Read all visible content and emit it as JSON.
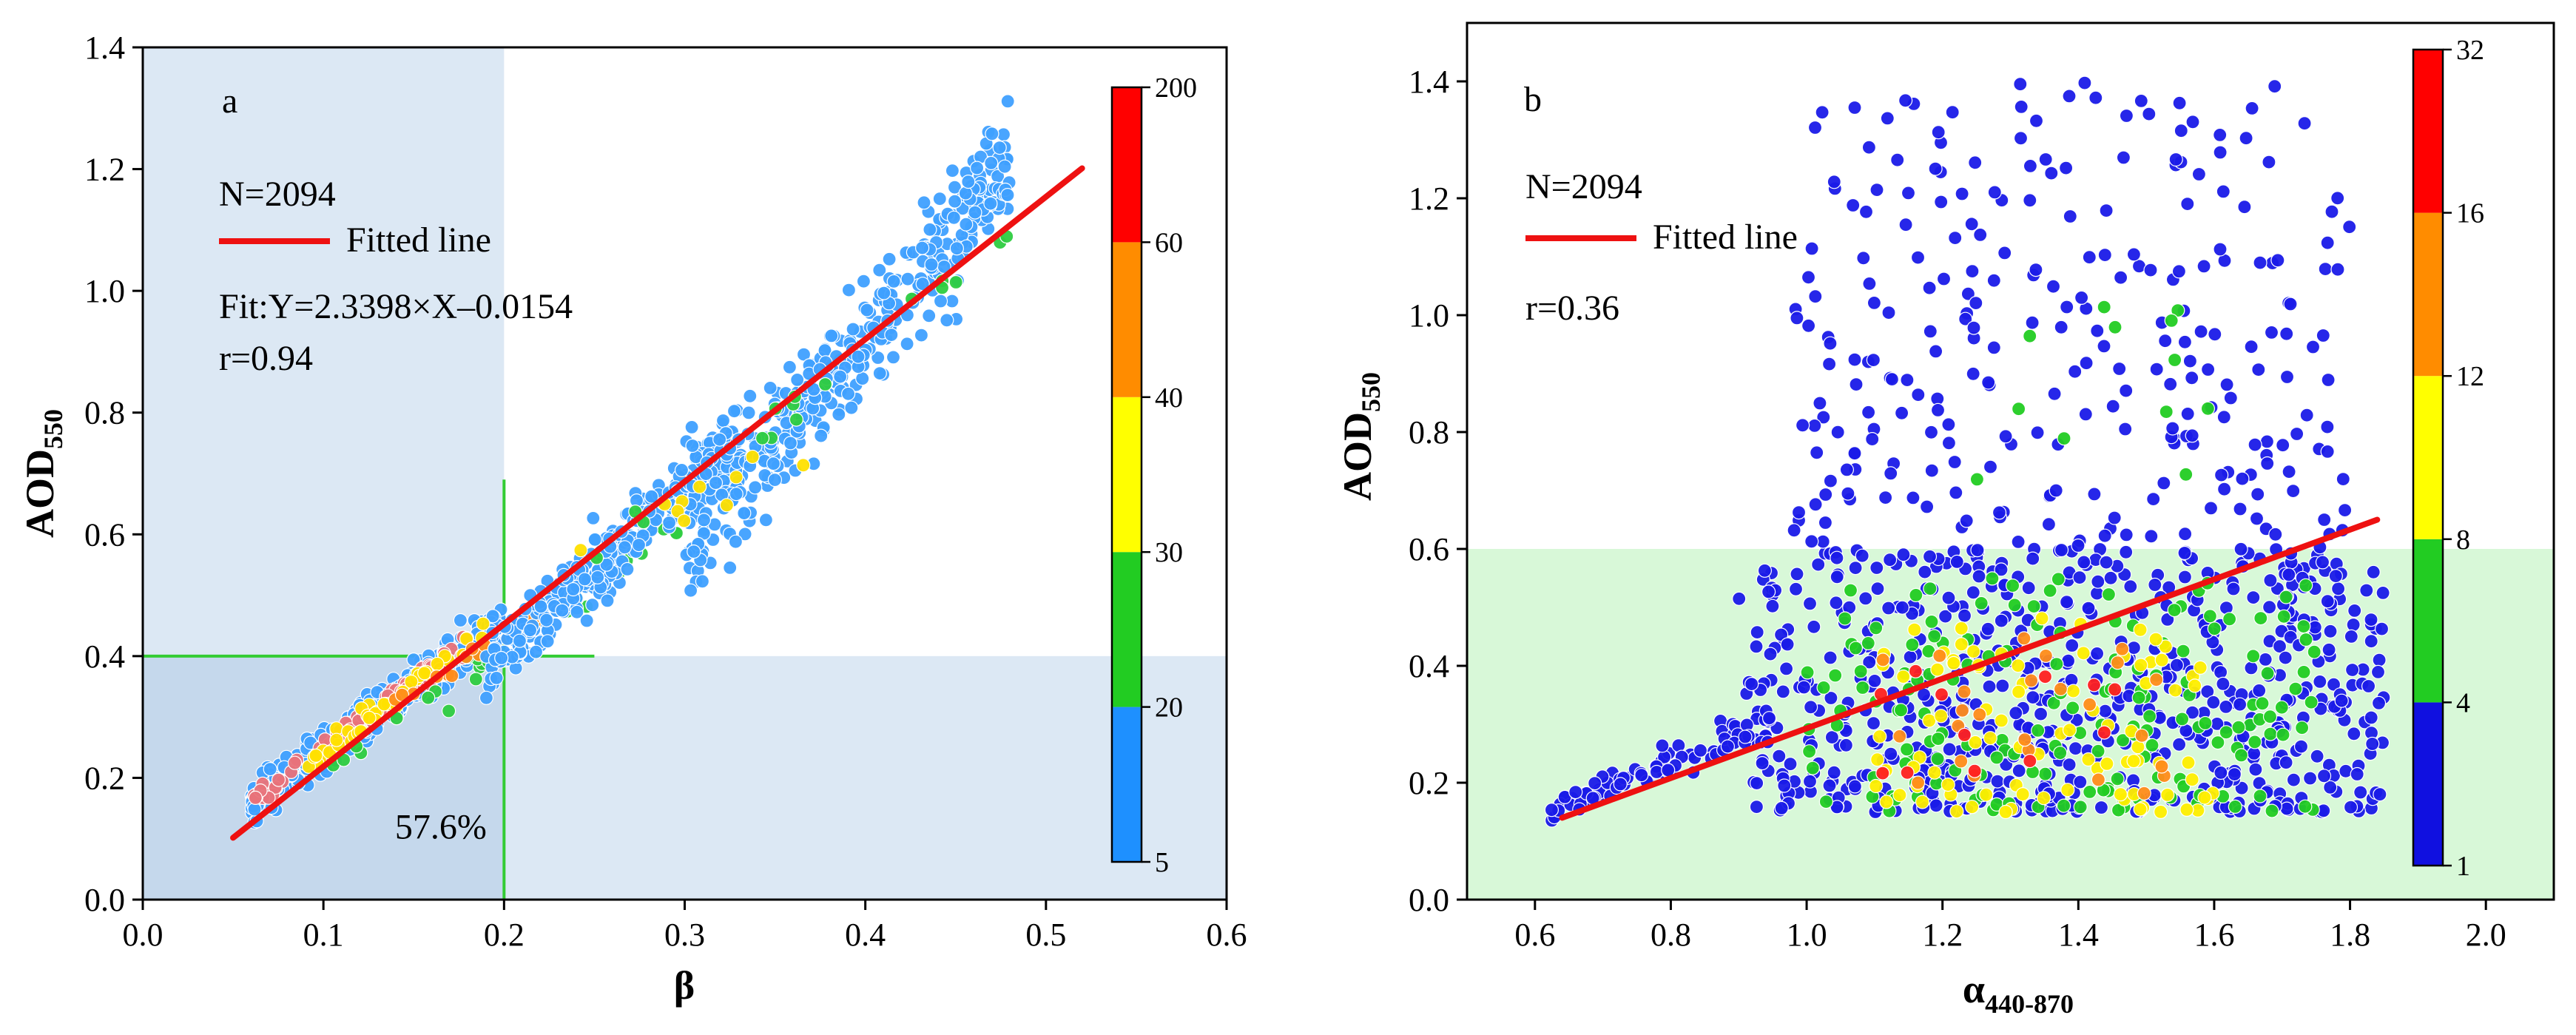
{
  "chart_data": [
    {
      "type": "scatter",
      "panel_label": "a",
      "xlabel": "β",
      "ylabel": "AOD",
      "ylabel_sub": "550",
      "xlim": [
        0.0,
        0.6
      ],
      "ylim": [
        0.0,
        1.4
      ],
      "xticks": [
        "0.0",
        "0.1",
        "0.2",
        "0.3",
        "0.4",
        "0.5",
        "0.6"
      ],
      "yticks": [
        "0.0",
        "0.2",
        "0.4",
        "0.6",
        "0.8",
        "1.0",
        "1.2",
        "1.4"
      ],
      "xtick_values": [
        0.0,
        0.1,
        0.2,
        0.3,
        0.4,
        0.5,
        0.6
      ],
      "ytick_values": [
        0.0,
        0.2,
        0.4,
        0.6,
        0.8,
        1.0,
        1.2,
        1.4
      ],
      "n_text": "N=2094",
      "legend_label": "Fitted line",
      "fit_text": "Fit:Y=2.3398×X–0.0154",
      "r_text": "r=0.94",
      "percent_text": "57.6%",
      "percent_pos": [
        0.165,
        0.1
      ],
      "fit": {
        "slope": 2.3398,
        "intercept": -0.0154,
        "x_range": [
          0.05,
          0.52
        ]
      },
      "shaded_regions": [
        {
          "x": [
            0.0,
            0.2
          ],
          "y": [
            0.4,
            1.4
          ],
          "color": "#dce8f4"
        },
        {
          "x": [
            0.2,
            0.6
          ],
          "y": [
            0.0,
            0.4
          ],
          "color": "#dce8f4"
        },
        {
          "x": [
            0.0,
            0.2
          ],
          "y": [
            0.0,
            0.4
          ],
          "color": "#c5d8ec"
        }
      ],
      "threshold_lines": [
        {
          "x": [
            0.2,
            0.2
          ],
          "y": [
            0.0,
            0.69
          ]
        },
        {
          "x": [
            0.0,
            0.25
          ],
          "y": [
            0.4,
            0.4
          ]
        }
      ],
      "colorbar": {
        "tick_labels": [
          "5",
          "20",
          "30",
          "40",
          "60",
          "200"
        ],
        "colors": [
          "#1e90ff",
          "#22cc22",
          "#ffff00",
          "#ff8c00",
          "#ff0000"
        ]
      },
      "clusters": [
        {
          "x": [
            0.06,
            0.2
          ],
          "y": [
            0.16,
            0.46
          ],
          "slope": 2.3,
          "spread": 0.035,
          "n": 420,
          "color": "#3fa0ff"
        },
        {
          "x": [
            0.06,
            0.18
          ],
          "y": [
            0.16,
            0.42
          ],
          "slope": 2.3,
          "spread": 0.02,
          "n": 90,
          "color": "#e8727a"
        },
        {
          "x": [
            0.09,
            0.19
          ],
          "y": [
            0.22,
            0.44
          ],
          "slope": 2.3,
          "spread": 0.02,
          "n": 45,
          "color": "#ffe000"
        },
        {
          "x": [
            0.1,
            0.3
          ],
          "y": [
            0.2,
            0.62
          ],
          "slope": 2.3,
          "spread": 0.03,
          "n": 30,
          "color": "#2ecc40"
        },
        {
          "x": [
            0.13,
            0.25
          ],
          "y": [
            0.3,
            0.52
          ],
          "slope": 2.3,
          "spread": 0.02,
          "n": 18,
          "color": "#ff8c1a"
        },
        {
          "x": [
            0.19,
            0.33
          ],
          "y": [
            0.38,
            0.76
          ],
          "slope": 2.2,
          "spread": 0.06,
          "n": 330,
          "color": "#3fa0ff"
        },
        {
          "x": [
            0.3,
            0.48
          ],
          "y": [
            0.58,
            1.2
          ],
          "slope": 2.2,
          "spread": 0.1,
          "n": 380,
          "color": "#3fa0ff"
        },
        {
          "x": [
            0.24,
            0.48
          ],
          "y": [
            0.55,
            1.08
          ],
          "slope": 2.2,
          "spread": 0.05,
          "n": 16,
          "color": "#2ecc40"
        },
        {
          "x": [
            0.24,
            0.4
          ],
          "y": [
            0.58,
            0.78
          ],
          "slope": 2.0,
          "spread": 0.04,
          "n": 10,
          "color": "#ffe000"
        }
      ]
    },
    {
      "type": "scatter",
      "panel_label": "b",
      "xlabel": "α",
      "xlabel_sub": "440-870",
      "ylabel": "AOD",
      "ylabel_sub": "550",
      "xlim": [
        0.5,
        2.1
      ],
      "ylim": [
        0.0,
        1.5
      ],
      "xticks": [
        "0.6",
        "0.8",
        "1.0",
        "1.2",
        "1.4",
        "1.6",
        "1.8",
        "2.0"
      ],
      "yticks": [
        "0.0",
        "0.2",
        "0.4",
        "0.6",
        "0.8",
        "1.0",
        "1.2",
        "1.4"
      ],
      "xtick_values": [
        0.6,
        0.8,
        1.0,
        1.2,
        1.4,
        1.6,
        1.8,
        2.0
      ],
      "ytick_values": [
        0.0,
        0.2,
        0.4,
        0.6,
        0.8,
        1.0,
        1.2,
        1.4
      ],
      "n_text": "N=2094",
      "legend_label": "Fitted line",
      "r_text": "r=0.36",
      "fit": {
        "x_range": [
          0.64,
          1.84
        ],
        "y_range": [
          0.14,
          0.65
        ]
      },
      "shaded_regions": [
        {
          "x": [
            0.5,
            2.1
          ],
          "y": [
            0.0,
            0.6
          ],
          "color": "#d8f8d8"
        }
      ],
      "colorbar": {
        "tick_labels": [
          "1",
          "4",
          "8",
          "12",
          "16",
          "32"
        ],
        "colors": [
          "#1010e0",
          "#22cc22",
          "#ffff00",
          "#ff8c00",
          "#ff0000"
        ]
      },
      "clusters": [
        {
          "x": [
            0.62,
            0.95
          ],
          "y": [
            0.15,
            0.3
          ],
          "slope": 0.2,
          "spread": 0.03,
          "n": 80,
          "color": "#1a1ae8"
        },
        {
          "x": [
            0.9,
            1.85
          ],
          "y": [
            0.15,
            0.6
          ],
          "slope": 0.0,
          "spread": 0.2,
          "n": 650,
          "color": "#1a1ae8"
        },
        {
          "x": [
            0.98,
            1.8
          ],
          "y": [
            0.55,
            1.4
          ],
          "slope": 0.0,
          "spread": 0.4,
          "n": 300,
          "color": "#1a1ae8"
        },
        {
          "x": [
            1.0,
            1.75
          ],
          "y": [
            0.15,
            0.55
          ],
          "slope": 0.0,
          "spread": 0.2,
          "n": 170,
          "color": "#22cc22"
        },
        {
          "x": [
            1.1,
            1.6
          ],
          "y": [
            0.15,
            0.5
          ],
          "slope": 0.0,
          "spread": 0.2,
          "n": 90,
          "color": "#ffee00"
        },
        {
          "x": [
            1.1,
            1.55
          ],
          "y": [
            0.18,
            0.45
          ],
          "slope": 0.0,
          "spread": 0.15,
          "n": 25,
          "color": "#ff8c1a"
        },
        {
          "x": [
            1.1,
            1.5
          ],
          "y": [
            0.18,
            0.42
          ],
          "slope": 0.0,
          "spread": 0.15,
          "n": 12,
          "color": "#ff2020"
        },
        {
          "x": [
            1.25,
            1.6
          ],
          "y": [
            0.7,
            1.1
          ],
          "slope": 0.0,
          "spread": 0.2,
          "n": 12,
          "color": "#22cc22"
        }
      ]
    }
  ]
}
